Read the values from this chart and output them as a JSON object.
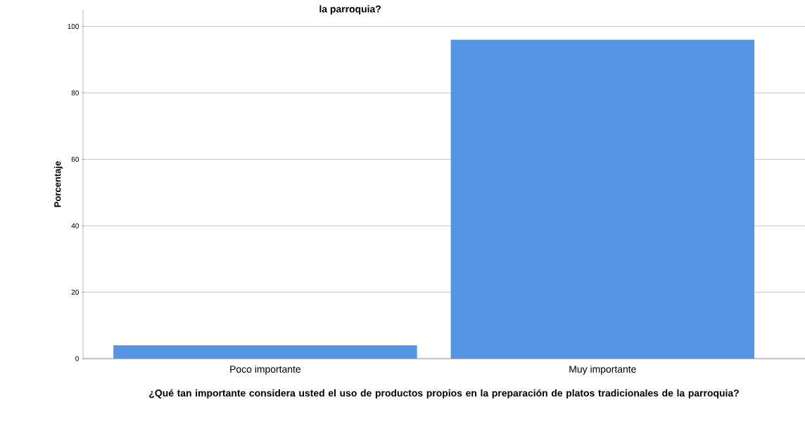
{
  "chart_data": {
    "type": "bar",
    "title": "la parroquia?",
    "categories": [
      "Poco importante",
      "Muy importante"
    ],
    "values": [
      4,
      96
    ],
    "color": "#5596e4",
    "xlabel": "¿Qué tan importante considera usted el uso de productos propios en la preparación de platos tradicionales de la parroquia?",
    "ylabel": "Porcentaje",
    "ylim": [
      0,
      105
    ],
    "yticks": [
      0,
      20,
      40,
      60,
      80,
      100
    ],
    "grid": "y"
  }
}
